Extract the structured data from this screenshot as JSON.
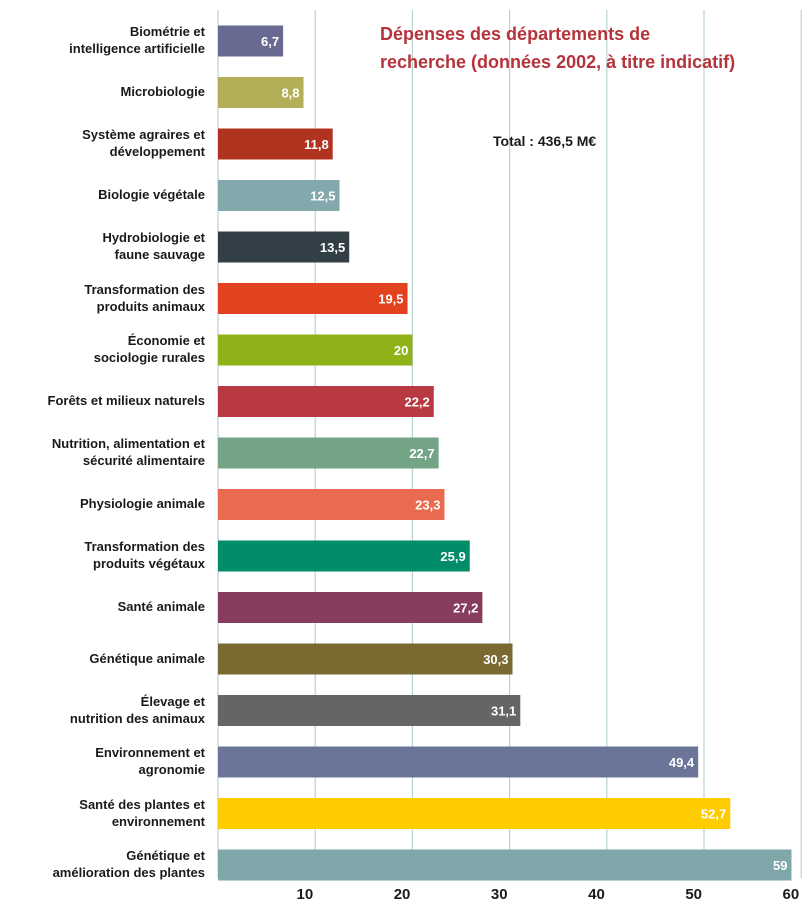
{
  "chart_data": {
    "type": "bar",
    "orientation": "horizontal",
    "title": "Dépenses des départements de\nrecherche (données 2002, à titre indicatif)",
    "annotation": "Total : 436,5 M€",
    "xlim": [
      0,
      60
    ],
    "x_ticks": [
      10,
      20,
      30,
      40,
      50,
      60
    ],
    "grid": "vertical",
    "categories": [
      "Biométrie et\nintelligence artificielle",
      "Microbiologie",
      "Système agraires et\ndéveloppement",
      "Biologie végétale",
      "Hydrobiologie et\nfaune sauvage",
      "Transformation des\nproduits animaux",
      "Économie et\nsociologie rurales",
      "Forêts et milieux naturels",
      "Nutrition, alimentation et\nsécurité alimentaire",
      "Physiologie animale",
      "Transformation des\nproduits végétaux",
      "Santé animale",
      "Génétique animale",
      "Élevage et\nnutrition des animaux",
      "Environnement et\nagronomie",
      "Santé des plantes et\nenvironnement",
      "Génétique et\namélioration des plantes"
    ],
    "values": [
      6.7,
      8.8,
      11.8,
      12.5,
      13.5,
      19.5,
      20,
      22.2,
      22.7,
      23.3,
      25.9,
      27.2,
      30.3,
      31.1,
      49.4,
      52.7,
      59
    ],
    "value_labels": [
      "6,7",
      "8,8",
      "11,8",
      "12,5",
      "13,5",
      "19,5",
      "20",
      "22,2",
      "22,7",
      "23,3",
      "25,9",
      "27,2",
      "30,3",
      "31,1",
      "49,4",
      "52,7",
      "59"
    ],
    "colors": [
      "#696a92",
      "#b3ae58",
      "#b0331f",
      "#84a9ad",
      "#333f46",
      "#e2421e",
      "#8fb218",
      "#b8393f",
      "#74a486",
      "#e96b4f",
      "#028c6a",
      "#883d5f",
      "#7a6a31",
      "#666466",
      "#6b7499",
      "#ffcc00",
      "#7fa7aa"
    ]
  }
}
